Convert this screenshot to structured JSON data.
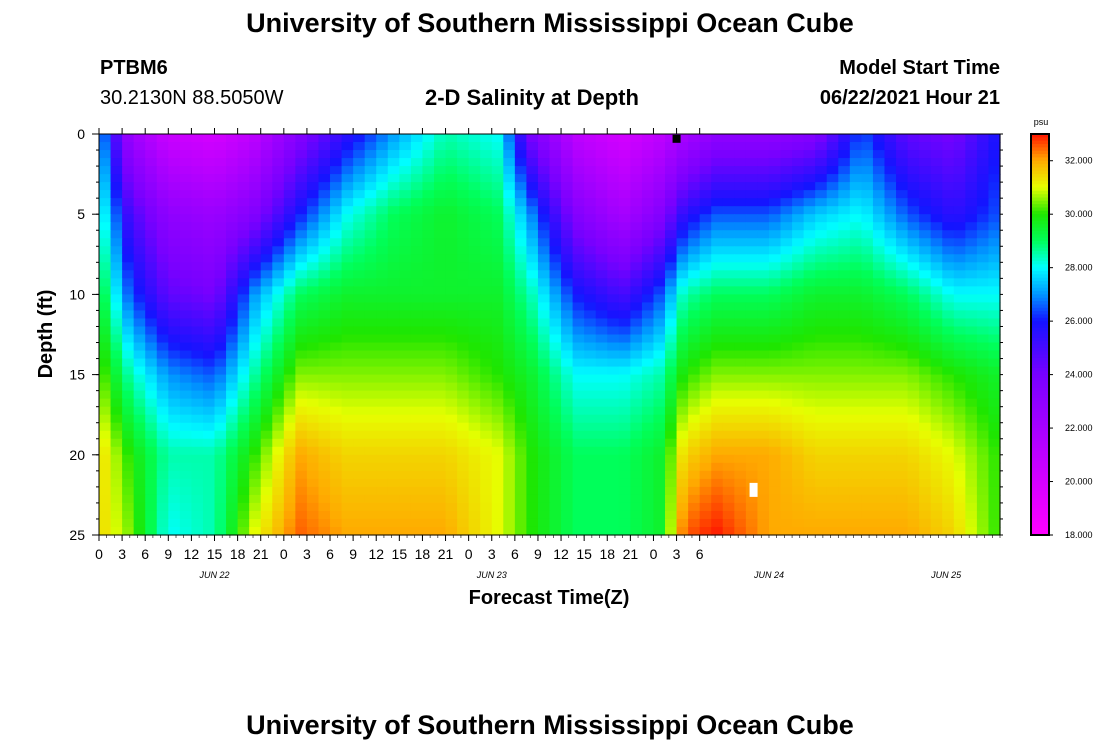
{
  "header": {
    "title": "University of Southern Mississippi Ocean Cube",
    "station_id": "PTBM6",
    "coords": "30.2130N  88.5050W",
    "chart_title": "2-D Salinity at Depth",
    "model_start_label": "Model Start Time",
    "model_start_value": "06/22/2021 Hour 21"
  },
  "footer": {
    "title": "University of Southern Mississippi Ocean Cube"
  },
  "chart_data": {
    "type": "heatmap",
    "title": "2-D Salinity at Depth",
    "xlabel": "Forecast Time(Z)",
    "ylabel": "Depth (ft)",
    "colorbar_unit": "psu",
    "colorbar_ticks": [
      "32.000",
      "30.000",
      "28.000",
      "26.000",
      "24.000",
      "22.000",
      "20.000",
      "18.000"
    ],
    "colorbar_range": [
      18,
      33
    ],
    "ylim": [
      0,
      25
    ],
    "y_ticks": [
      "0",
      "5",
      "10",
      "15",
      "20",
      "25"
    ],
    "x_ticks": [
      "0",
      "3",
      "6",
      "9",
      "12",
      "15",
      "18",
      "21",
      "0",
      "3",
      "6",
      "9",
      "12",
      "15",
      "18",
      "21",
      "0",
      "3",
      "6",
      "9",
      "12",
      "15",
      "18",
      "21",
      "0",
      "3",
      "6"
    ],
    "day_labels": [
      {
        "label": "JUN 22",
        "hour": 15
      },
      {
        "label": "JUN 23",
        "hour": 51
      },
      {
        "label": "JUN 24",
        "hour": 87
      },
      {
        "label": "JUN 25",
        "hour": 110
      }
    ],
    "x_range_hours": [
      0,
      117
    ],
    "depths_ft": [
      0,
      5,
      10,
      15,
      20,
      25
    ],
    "hours": [
      0,
      4,
      9,
      15,
      20,
      26,
      32,
      38,
      45,
      52,
      56,
      62,
      68,
      73,
      76,
      80,
      87,
      93,
      99,
      105,
      111,
      117
    ],
    "salinity_psu": [
      [
        27.5,
        22.5,
        20.5,
        20.0,
        21.0,
        23.5,
        25.5,
        27.0,
        28.5,
        28.0,
        24.0,
        21.0,
        20.0,
        21.0,
        22.0,
        23.0,
        23.0,
        23.5,
        26.5,
        24.5,
        24.0,
        26.0
      ],
      [
        28.5,
        25.0,
        23.0,
        22.5,
        23.5,
        26.0,
        28.0,
        29.0,
        29.5,
        29.0,
        27.0,
        23.5,
        22.0,
        23.5,
        25.5,
        26.5,
        26.5,
        27.5,
        28.0,
        26.5,
        25.5,
        26.5
      ],
      [
        29.5,
        26.5,
        24.5,
        24.0,
        27.0,
        29.0,
        29.5,
        29.5,
        29.5,
        29.5,
        28.5,
        26.0,
        25.0,
        26.5,
        28.5,
        29.0,
        29.0,
        29.5,
        29.5,
        29.0,
        28.0,
        28.0
      ],
      [
        30.5,
        28.5,
        27.0,
        26.5,
        28.5,
        30.5,
        30.5,
        30.5,
        30.5,
        30.0,
        29.5,
        28.0,
        28.0,
        28.5,
        30.0,
        30.5,
        30.5,
        30.5,
        30.5,
        30.5,
        30.0,
        29.5
      ],
      [
        31.5,
        30.0,
        28.5,
        28.5,
        30.0,
        32.0,
        31.5,
        31.5,
        31.5,
        31.0,
        30.0,
        29.0,
        29.0,
        29.5,
        31.5,
        32.0,
        32.0,
        31.5,
        31.5,
        31.5,
        31.0,
        30.0
      ],
      [
        31.5,
        30.5,
        28.0,
        28.5,
        31.0,
        32.5,
        32.0,
        32.0,
        32.0,
        31.0,
        30.0,
        29.0,
        29.0,
        29.5,
        32.5,
        33.0,
        32.0,
        32.0,
        32.0,
        32.0,
        31.5,
        30.0
      ]
    ],
    "markers": [
      {
        "kind": "surface-marker",
        "hour": 75.0,
        "depth": 0.3,
        "color": "#000000"
      },
      {
        "kind": "station-marker",
        "hour": 85.0,
        "depth": 22.0,
        "color": "#ffffff"
      }
    ]
  }
}
